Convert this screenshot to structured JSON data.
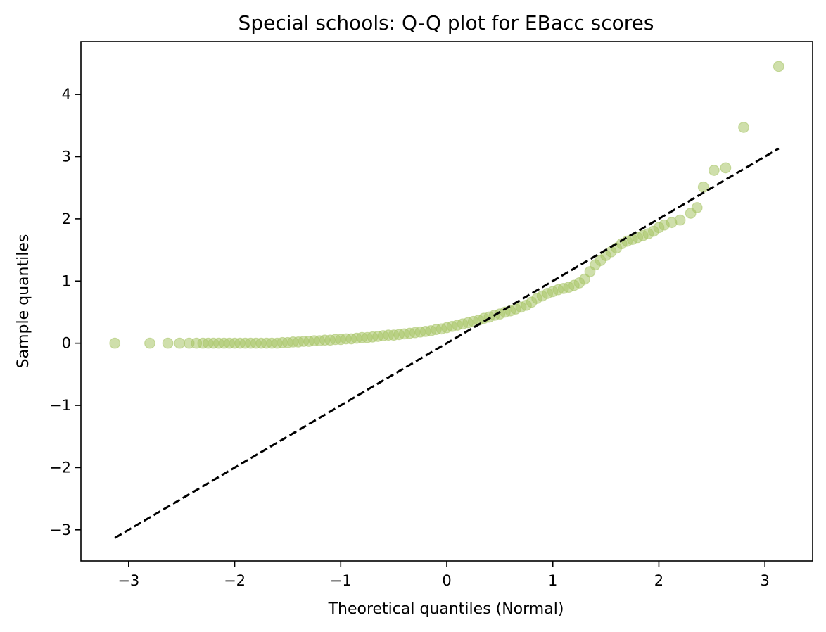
{
  "chart_data": {
    "type": "scatter",
    "title": "Special schools: Q-Q plot for EBacc scores",
    "xlabel": "Theoretical quantiles (Normal)",
    "ylabel": "Sample quantiles",
    "xlim": [
      -3.45,
      3.45
    ],
    "ylim": [
      -3.5,
      4.85
    ],
    "xticks": [
      -3,
      -2,
      -1,
      0,
      1,
      2,
      3
    ],
    "yticks": [
      -3,
      -2,
      -1,
      0,
      1,
      2,
      3,
      4
    ],
    "xtick_labels": [
      "−3",
      "−2",
      "−1",
      "0",
      "1",
      "2",
      "3"
    ],
    "ytick_labels": [
      "−3",
      "−2",
      "−1",
      "0",
      "1",
      "2",
      "3",
      "4"
    ],
    "grid": false,
    "marker_color": "#a8c466",
    "marker_alpha": 0.55,
    "reference_line": {
      "style": "dashed",
      "color": "#000000",
      "points": [
        [
          -3.13,
          -3.13
        ],
        [
          3.13,
          3.13
        ]
      ]
    },
    "series": [
      {
        "points": [
          [
            -3.13,
            0.0
          ],
          [
            -2.8,
            0.0
          ],
          [
            -2.63,
            0.0
          ],
          [
            -2.52,
            0.0
          ],
          [
            -2.43,
            0.0
          ],
          [
            -2.36,
            0.0
          ],
          [
            -2.3,
            0.0
          ],
          [
            -2.25,
            0.0
          ],
          [
            -2.2,
            0.0
          ],
          [
            -2.15,
            0.0
          ],
          [
            -2.1,
            0.0
          ],
          [
            -2.05,
            0.0
          ],
          [
            -2.0,
            0.0
          ],
          [
            -1.95,
            0.0
          ],
          [
            -1.9,
            0.0
          ],
          [
            -1.85,
            0.0
          ],
          [
            -1.8,
            0.0
          ],
          [
            -1.75,
            0.0
          ],
          [
            -1.7,
            0.0
          ],
          [
            -1.65,
            0.0
          ],
          [
            -1.6,
            0.0
          ],
          [
            -1.55,
            0.01
          ],
          [
            -1.5,
            0.01
          ],
          [
            -1.45,
            0.02
          ],
          [
            -1.4,
            0.02
          ],
          [
            -1.35,
            0.03
          ],
          [
            -1.3,
            0.03
          ],
          [
            -1.25,
            0.04
          ],
          [
            -1.2,
            0.04
          ],
          [
            -1.15,
            0.05
          ],
          [
            -1.1,
            0.05
          ],
          [
            -1.05,
            0.06
          ],
          [
            -1.0,
            0.06
          ],
          [
            -0.95,
            0.07
          ],
          [
            -0.9,
            0.07
          ],
          [
            -0.85,
            0.08
          ],
          [
            -0.8,
            0.09
          ],
          [
            -0.75,
            0.09
          ],
          [
            -0.7,
            0.1
          ],
          [
            -0.65,
            0.11
          ],
          [
            -0.6,
            0.12
          ],
          [
            -0.55,
            0.13
          ],
          [
            -0.5,
            0.13
          ],
          [
            -0.45,
            0.14
          ],
          [
            -0.4,
            0.15
          ],
          [
            -0.35,
            0.16
          ],
          [
            -0.3,
            0.17
          ],
          [
            -0.25,
            0.18
          ],
          [
            -0.2,
            0.19
          ],
          [
            -0.15,
            0.2
          ],
          [
            -0.1,
            0.22
          ],
          [
            -0.05,
            0.23
          ],
          [
            0.0,
            0.25
          ],
          [
            0.05,
            0.27
          ],
          [
            0.1,
            0.29
          ],
          [
            0.15,
            0.31
          ],
          [
            0.2,
            0.33
          ],
          [
            0.25,
            0.35
          ],
          [
            0.3,
            0.37
          ],
          [
            0.35,
            0.4
          ],
          [
            0.4,
            0.42
          ],
          [
            0.45,
            0.45
          ],
          [
            0.5,
            0.47
          ],
          [
            0.55,
            0.5
          ],
          [
            0.6,
            0.52
          ],
          [
            0.65,
            0.55
          ],
          [
            0.7,
            0.58
          ],
          [
            0.75,
            0.61
          ],
          [
            0.8,
            0.66
          ],
          [
            0.85,
            0.72
          ],
          [
            0.9,
            0.76
          ],
          [
            0.95,
            0.8
          ],
          [
            1.0,
            0.83
          ],
          [
            1.05,
            0.86
          ],
          [
            1.1,
            0.88
          ],
          [
            1.15,
            0.9
          ],
          [
            1.2,
            0.93
          ],
          [
            1.25,
            0.97
          ],
          [
            1.3,
            1.03
          ],
          [
            1.35,
            1.15
          ],
          [
            1.4,
            1.26
          ],
          [
            1.45,
            1.33
          ],
          [
            1.5,
            1.41
          ],
          [
            1.55,
            1.47
          ],
          [
            1.6,
            1.53
          ],
          [
            1.65,
            1.6
          ],
          [
            1.7,
            1.64
          ],
          [
            1.75,
            1.67
          ],
          [
            1.8,
            1.7
          ],
          [
            1.85,
            1.73
          ],
          [
            1.9,
            1.76
          ],
          [
            1.95,
            1.8
          ],
          [
            2.0,
            1.86
          ],
          [
            2.05,
            1.9
          ],
          [
            2.12,
            1.94
          ],
          [
            2.2,
            1.98
          ],
          [
            2.3,
            2.09
          ],
          [
            2.36,
            2.18
          ],
          [
            2.42,
            2.51
          ],
          [
            2.52,
            2.78
          ],
          [
            2.63,
            2.82
          ],
          [
            2.8,
            3.47
          ],
          [
            3.13,
            4.45
          ]
        ]
      }
    ]
  }
}
